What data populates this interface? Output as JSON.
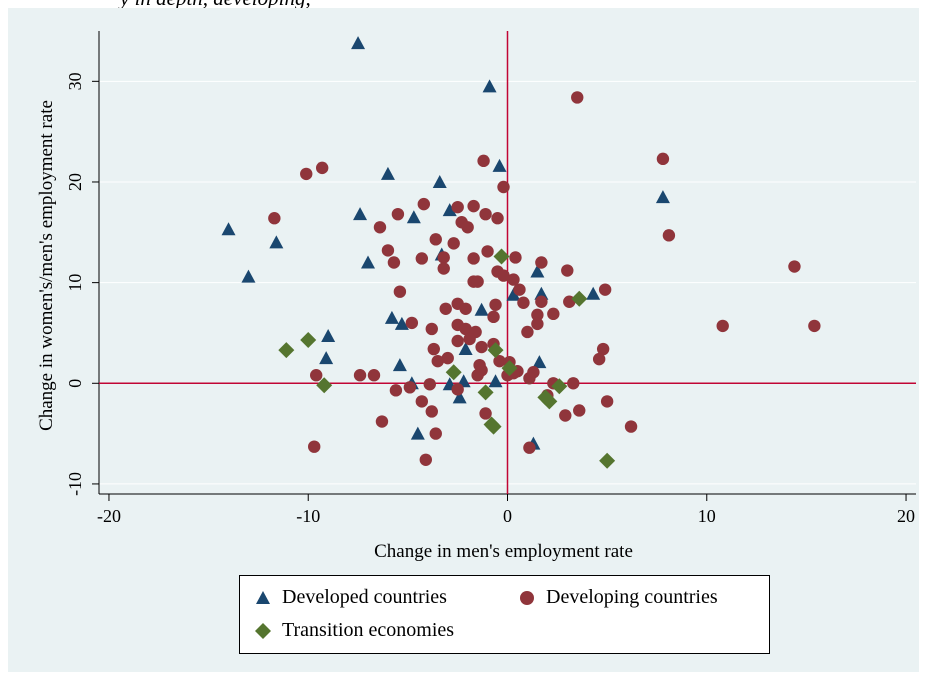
{
  "caption": "y in depth, developing,",
  "colors": {
    "developed": "#1a476f",
    "developing": "#90353b",
    "transition": "#55752f",
    "refline": "#c10534",
    "panel": "#eaf2f3",
    "grid": "#ffffff"
  },
  "chart_data": {
    "type": "scatter",
    "xlabel": "Change in men's employment rate",
    "ylabel": "Change in women's/men's employment rate",
    "xlim": [
      -20.5,
      20.5
    ],
    "ylim": [
      -11,
      35
    ],
    "xticks": [
      -20,
      -10,
      0,
      10,
      20
    ],
    "yticks": [
      -10,
      0,
      10,
      20,
      30
    ],
    "grid": true,
    "reference_lines": {
      "x": 0,
      "y": 0
    },
    "legend_position": "bottom",
    "series": [
      {
        "name": "Developed countries",
        "marker": "triangle",
        "points": [
          [
            -7.5,
            33.8
          ],
          [
            -0.9,
            29.5
          ],
          [
            -0.4,
            21.6
          ],
          [
            -6.0,
            20.8
          ],
          [
            -3.4,
            20.0
          ],
          [
            7.8,
            18.5
          ],
          [
            -7.4,
            16.8
          ],
          [
            -2.9,
            17.2
          ],
          [
            -4.7,
            16.5
          ],
          [
            -14.0,
            15.3
          ],
          [
            -11.6,
            14.0
          ],
          [
            -7.0,
            12.0
          ],
          [
            -13.0,
            10.6
          ],
          [
            -3.3,
            12.8
          ],
          [
            1.5,
            11.1
          ],
          [
            0.3,
            8.8
          ],
          [
            1.7,
            8.9
          ],
          [
            4.3,
            8.9
          ],
          [
            -5.8,
            6.5
          ],
          [
            -5.3,
            5.9
          ],
          [
            -9.0,
            4.7
          ],
          [
            -1.3,
            7.3
          ],
          [
            -9.1,
            2.5
          ],
          [
            -5.4,
            1.8
          ],
          [
            -2.1,
            3.4
          ],
          [
            1.6,
            2.1
          ],
          [
            -2.9,
            -0.1
          ],
          [
            -4.8,
            0.0
          ],
          [
            -2.2,
            0.2
          ],
          [
            -0.6,
            0.2
          ],
          [
            -2.4,
            -1.4
          ],
          [
            -4.5,
            -5.0
          ],
          [
            1.3,
            -6.0
          ]
        ]
      },
      {
        "name": "Developing countries",
        "marker": "circle",
        "points": [
          [
            3.5,
            28.4
          ],
          [
            7.8,
            22.3
          ],
          [
            -1.2,
            22.1
          ],
          [
            -9.3,
            21.4
          ],
          [
            -10.1,
            20.8
          ],
          [
            -0.2,
            19.5
          ],
          [
            -11.7,
            16.4
          ],
          [
            -4.2,
            17.8
          ],
          [
            -1.7,
            17.6
          ],
          [
            -2.5,
            17.5
          ],
          [
            -5.5,
            16.8
          ],
          [
            -1.1,
            16.8
          ],
          [
            -0.5,
            16.4
          ],
          [
            -2.3,
            16.0
          ],
          [
            -2.0,
            15.5
          ],
          [
            -6.4,
            15.5
          ],
          [
            -2.7,
            13.9
          ],
          [
            8.1,
            14.7
          ],
          [
            -3.6,
            14.3
          ],
          [
            -6.0,
            13.2
          ],
          [
            -1.0,
            13.1
          ],
          [
            -3.2,
            12.5
          ],
          [
            -4.3,
            12.4
          ],
          [
            -1.7,
            12.4
          ],
          [
            0.4,
            12.5
          ],
          [
            1.7,
            12.0
          ],
          [
            -5.7,
            12.0
          ],
          [
            14.4,
            11.6
          ],
          [
            -3.2,
            11.4
          ],
          [
            3.0,
            11.2
          ],
          [
            -0.5,
            11.1
          ],
          [
            -0.2,
            10.7
          ],
          [
            0.3,
            10.3
          ],
          [
            -1.7,
            10.1
          ],
          [
            -1.5,
            10.1
          ],
          [
            0.6,
            9.3
          ],
          [
            4.9,
            9.3
          ],
          [
            -5.4,
            9.1
          ],
          [
            1.7,
            8.1
          ],
          [
            3.1,
            8.1
          ],
          [
            0.8,
            8.0
          ],
          [
            -2.5,
            7.9
          ],
          [
            -0.6,
            7.8
          ],
          [
            -3.1,
            7.4
          ],
          [
            -2.1,
            7.4
          ],
          [
            1.5,
            6.8
          ],
          [
            -0.7,
            6.6
          ],
          [
            2.3,
            6.9
          ],
          [
            -4.8,
            6.0
          ],
          [
            -2.5,
            5.8
          ],
          [
            1.5,
            5.9
          ],
          [
            10.8,
            5.7
          ],
          [
            15.4,
            5.7
          ],
          [
            -2.1,
            5.4
          ],
          [
            -3.8,
            5.4
          ],
          [
            -1.6,
            5.1
          ],
          [
            1.0,
            5.1
          ],
          [
            -1.9,
            4.4
          ],
          [
            -2.5,
            4.2
          ],
          [
            -0.7,
            3.9
          ],
          [
            -1.3,
            3.6
          ],
          [
            -3.7,
            3.4
          ],
          [
            4.8,
            3.4
          ],
          [
            -3.0,
            2.5
          ],
          [
            4.6,
            2.4
          ],
          [
            -3.5,
            2.2
          ],
          [
            -0.4,
            2.2
          ],
          [
            0.1,
            2.1
          ],
          [
            -1.4,
            1.8
          ],
          [
            -1.3,
            1.3
          ],
          [
            0.5,
            1.2
          ],
          [
            1.3,
            1.1
          ],
          [
            0.3,
            1.0
          ],
          [
            -7.4,
            0.8
          ],
          [
            -6.7,
            0.8
          ],
          [
            -9.6,
            0.8
          ],
          [
            1.1,
            0.5
          ],
          [
            -1.5,
            0.8
          ],
          [
            0.0,
            0.8
          ],
          [
            2.3,
            0.0
          ],
          [
            3.3,
            0.0
          ],
          [
            -3.9,
            -0.1
          ],
          [
            -4.9,
            -0.4
          ],
          [
            -5.6,
            -0.7
          ],
          [
            -2.5,
            -0.6
          ],
          [
            2.0,
            -1.2
          ],
          [
            -4.3,
            -1.8
          ],
          [
            5.0,
            -1.8
          ],
          [
            -3.8,
            -2.8
          ],
          [
            3.6,
            -2.7
          ],
          [
            -1.1,
            -3.0
          ],
          [
            2.9,
            -3.2
          ],
          [
            -6.3,
            -3.8
          ],
          [
            6.2,
            -4.3
          ],
          [
            -3.6,
            -5.0
          ],
          [
            -9.7,
            -6.3
          ],
          [
            1.1,
            -6.4
          ],
          [
            -4.1,
            -7.6
          ]
        ]
      },
      {
        "name": "Transition economies",
        "marker": "diamond",
        "points": [
          [
            -0.3,
            12.6
          ],
          [
            3.6,
            8.4
          ],
          [
            -10.0,
            4.3
          ],
          [
            -11.1,
            3.3
          ],
          [
            -0.6,
            3.3
          ],
          [
            0.1,
            1.5
          ],
          [
            -2.7,
            1.1
          ],
          [
            -9.2,
            -0.2
          ],
          [
            2.6,
            -0.3
          ],
          [
            -1.1,
            -0.9
          ],
          [
            1.9,
            -1.4
          ],
          [
            2.1,
            -1.8
          ],
          [
            -0.8,
            -4.1
          ],
          [
            -0.7,
            -4.3
          ],
          [
            5.0,
            -7.7
          ]
        ]
      }
    ]
  }
}
